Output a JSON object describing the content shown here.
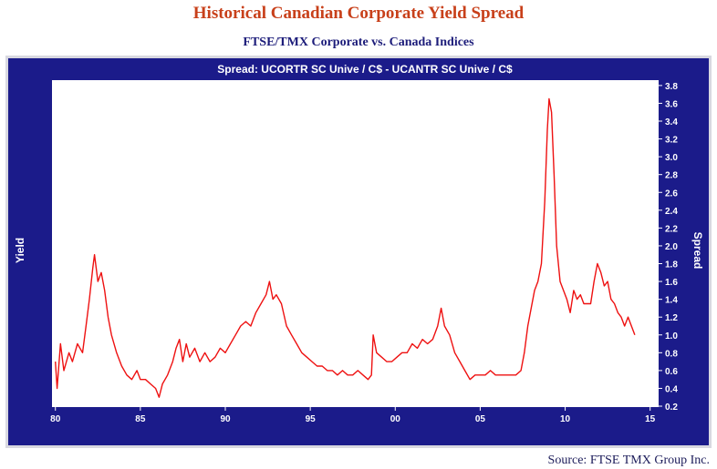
{
  "chart_data": {
    "type": "line",
    "title": "Historical Canadian Corporate Yield Spread",
    "subtitle": "FTSE/TMX Corporate vs. Canada Indices",
    "plot_title": "Spread: UCORTR SC Unive / C$  -  UCANTR SC Unive / C$",
    "ylabel": "Yield",
    "y2label": "Spread",
    "source": "Source: FTSE TMX Group Inc.",
    "x": [
      1980.0,
      1980.1,
      1980.3,
      1980.5,
      1980.8,
      1981.0,
      1981.3,
      1981.6,
      1981.8,
      1982.0,
      1982.2,
      1982.3,
      1982.5,
      1982.7,
      1982.9,
      1983.1,
      1983.3,
      1983.6,
      1983.9,
      1984.2,
      1984.5,
      1984.8,
      1985.0,
      1985.3,
      1985.6,
      1985.9,
      1986.1,
      1986.3,
      1986.6,
      1986.9,
      1987.1,
      1987.3,
      1987.5,
      1987.7,
      1987.9,
      1988.2,
      1988.5,
      1988.8,
      1989.1,
      1989.4,
      1989.7,
      1990.0,
      1990.3,
      1990.6,
      1990.9,
      1991.2,
      1991.5,
      1991.8,
      1992.1,
      1992.4,
      1992.6,
      1992.8,
      1993.0,
      1993.3,
      1993.6,
      1993.9,
      1994.2,
      1994.5,
      1994.8,
      1995.1,
      1995.4,
      1995.7,
      1996.0,
      1996.3,
      1996.6,
      1996.9,
      1997.2,
      1997.5,
      1997.8,
      1998.1,
      1998.4,
      1998.6,
      1998.7,
      1998.9,
      1999.2,
      1999.5,
      1999.8,
      2000.1,
      2000.4,
      2000.7,
      2001.0,
      2001.3,
      2001.6,
      2001.9,
      2002.2,
      2002.5,
      2002.7,
      2002.9,
      2003.2,
      2003.5,
      2003.8,
      2004.1,
      2004.4,
      2004.7,
      2005.0,
      2005.3,
      2005.6,
      2005.9,
      2006.2,
      2006.5,
      2006.8,
      2007.1,
      2007.4,
      2007.6,
      2007.8,
      2008.0,
      2008.2,
      2008.4,
      2008.6,
      2008.8,
      2008.95,
      2009.05,
      2009.2,
      2009.35,
      2009.5,
      2009.7,
      2009.9,
      2010.1,
      2010.3,
      2010.5,
      2010.7,
      2010.9,
      2011.1,
      2011.3,
      2011.5,
      2011.7,
      2011.9,
      2012.1,
      2012.3,
      2012.5,
      2012.7,
      2012.9,
      2013.1,
      2013.3,
      2013.5,
      2013.7,
      2013.9,
      2014.1
    ],
    "series": [
      {
        "name": "Spread",
        "color": "#ee1111",
        "values": [
          0.7,
          0.4,
          0.9,
          0.6,
          0.8,
          0.7,
          0.9,
          0.8,
          1.1,
          1.4,
          1.75,
          1.9,
          1.6,
          1.7,
          1.5,
          1.2,
          1.0,
          0.8,
          0.65,
          0.55,
          0.5,
          0.6,
          0.5,
          0.5,
          0.45,
          0.4,
          0.3,
          0.45,
          0.55,
          0.7,
          0.85,
          0.95,
          0.7,
          0.9,
          0.75,
          0.85,
          0.7,
          0.8,
          0.7,
          0.75,
          0.85,
          0.8,
          0.9,
          1.0,
          1.1,
          1.15,
          1.1,
          1.25,
          1.35,
          1.45,
          1.6,
          1.4,
          1.45,
          1.35,
          1.1,
          1.0,
          0.9,
          0.8,
          0.75,
          0.7,
          0.65,
          0.65,
          0.6,
          0.6,
          0.55,
          0.6,
          0.55,
          0.55,
          0.6,
          0.55,
          0.5,
          0.55,
          1.0,
          0.8,
          0.75,
          0.7,
          0.7,
          0.75,
          0.8,
          0.8,
          0.9,
          0.85,
          0.95,
          0.9,
          0.95,
          1.1,
          1.3,
          1.1,
          1.0,
          0.8,
          0.7,
          0.6,
          0.5,
          0.55,
          0.55,
          0.55,
          0.6,
          0.55,
          0.55,
          0.55,
          0.55,
          0.55,
          0.6,
          0.8,
          1.1,
          1.3,
          1.5,
          1.6,
          1.8,
          2.5,
          3.3,
          3.65,
          3.5,
          2.8,
          2.0,
          1.6,
          1.5,
          1.4,
          1.25,
          1.5,
          1.4,
          1.45,
          1.35,
          1.35,
          1.35,
          1.6,
          1.8,
          1.7,
          1.55,
          1.6,
          1.4,
          1.35,
          1.25,
          1.2,
          1.1,
          1.2,
          1.1,
          1.0
        ]
      }
    ],
    "xlim": [
      1979.8,
      2015.5
    ],
    "xticks": [
      {
        "value": 1980,
        "label": "80"
      },
      {
        "value": 1985,
        "label": "85"
      },
      {
        "value": 1990,
        "label": "90"
      },
      {
        "value": 1995,
        "label": "95"
      },
      {
        "value": 2000,
        "label": "00"
      },
      {
        "value": 2005,
        "label": "05"
      },
      {
        "value": 2010,
        "label": "10"
      },
      {
        "value": 2015,
        "label": "15"
      }
    ],
    "ylim": [
      0.19,
      3.86
    ],
    "yticks": [
      0.2,
      0.4,
      0.6,
      0.8,
      {
        "value": 1,
        "label": "1.0"
      },
      1.2,
      1.4,
      1.6,
      1.8,
      {
        "value": 2,
        "label": "2.0"
      },
      2.2,
      2.4,
      2.6,
      2.8,
      {
        "value": 3,
        "label": "3.0"
      },
      3.2,
      3.4,
      3.6,
      3.8
    ],
    "grid": false
  }
}
